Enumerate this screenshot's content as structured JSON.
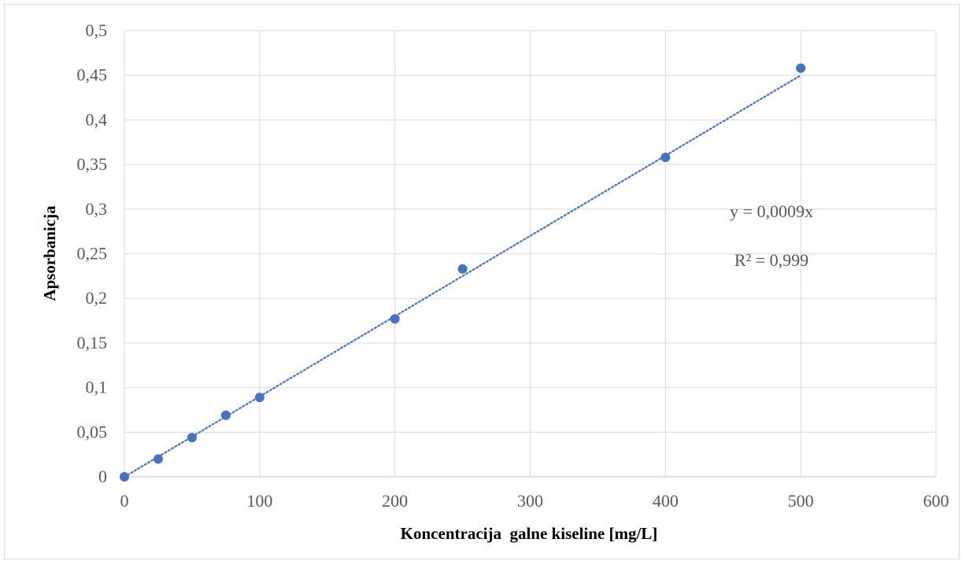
{
  "chart_data": {
    "type": "scatter",
    "title": "",
    "xlabel": "Koncentracija  galne kiseline [mg/L]",
    "ylabel": "Apsorbanicja",
    "xlim": [
      0,
      600
    ],
    "ylim": [
      0,
      0.5
    ],
    "x_ticks": [
      "0",
      "100",
      "200",
      "300",
      "400",
      "500",
      "600"
    ],
    "y_ticks": [
      "0",
      "0,05",
      "0,1",
      "0,15",
      "0,2",
      "0,25",
      "0,3",
      "0,35",
      "0,4",
      "0,45",
      "0,5"
    ],
    "grid": true,
    "series": [
      {
        "x": [
          0,
          25,
          50,
          75,
          100,
          200,
          250,
          400,
          500
        ],
        "y": [
          0,
          0.02,
          0.044,
          0.069,
          0.089,
          0.177,
          0.233,
          0.358,
          0.458
        ],
        "color": "#4472c4"
      }
    ],
    "trendline": {
      "type": "linear",
      "slope": 0.0009,
      "x_range": [
        0,
        500
      ],
      "style": "dotted",
      "color": "#4472c4",
      "equation": "y = 0,0009x",
      "r_squared": "R² = 0,999"
    }
  }
}
